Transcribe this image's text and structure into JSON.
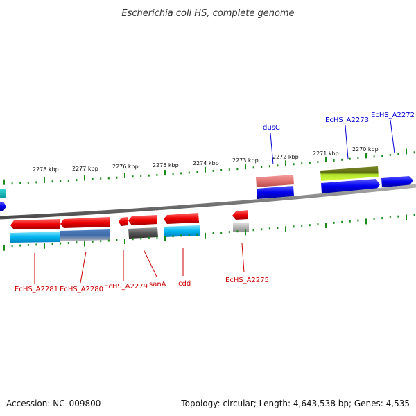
{
  "title": "Escherichia coli HS, complete genome",
  "footer": {
    "accession": "Accession: NC_009800",
    "summary": "Topology: circular; Length: 4,643,538 bp; Genes: 4,535"
  },
  "colors": {
    "top_label": "#0000cc",
    "bottom_label": "#cc0000",
    "tick": "#1a8a1a",
    "backbone": "#808080"
  },
  "kbp_labels": [
    "2278 kbp",
    "2277 kbp",
    "2276 kbp",
    "2275 kbp",
    "2274 kbp",
    "2273 kbp",
    "2272 kbp",
    "2271 kbp",
    "2270 kbp"
  ],
  "top_genes": [
    "dusC",
    "EcHS_A2273",
    "EcHS_A2272"
  ],
  "bottom_genes": [
    "EcHS_A2281",
    "EcHS_A2280",
    "EcHS_A2279",
    "sanA",
    "cdd",
    "EcHS_A2275"
  ]
}
